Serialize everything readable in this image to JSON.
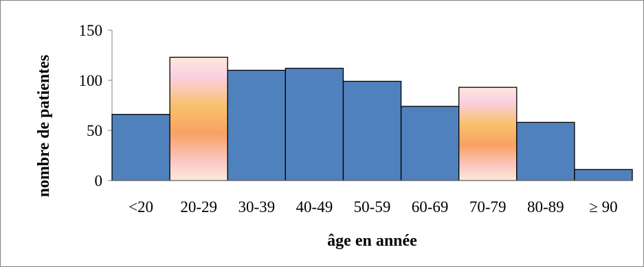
{
  "chart_data": {
    "type": "bar",
    "xlabel": "âge en année",
    "ylabel": "nombre de patientes",
    "categories": [
      "<20",
      "20-29",
      "30-39",
      "40-49",
      "50-59",
      "60-69",
      "70-79",
      "80-89",
      "≥ 90"
    ],
    "values": [
      66,
      123,
      110,
      112,
      99,
      74,
      93,
      58,
      11
    ],
    "highlighted_categories": [
      "20-29",
      "70-79"
    ],
    "ylim": [
      0,
      150
    ],
    "yticks": [
      0,
      50,
      100,
      150
    ],
    "grid": false,
    "legend": "none",
    "colors": {
      "bar": "#4f81bd",
      "highlight_gradient": [
        "#fde9d9",
        "#fbd5e8",
        "#f9c06b",
        "#f9a164",
        "#fbc9c5",
        "#fde9d9"
      ],
      "bar_stroke": "#000000",
      "axis": "#808080"
    }
  }
}
